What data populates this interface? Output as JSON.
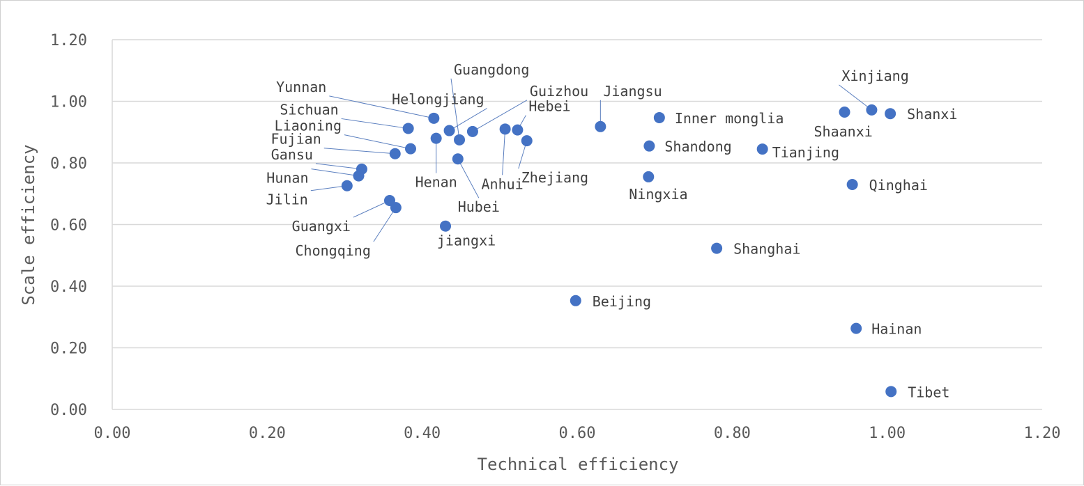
{
  "chart_data": {
    "type": "scatter",
    "title": "",
    "xlabel": "Technical efficiency",
    "ylabel": "Scale efficiency",
    "xlim": [
      0,
      1.2
    ],
    "ylim": [
      0,
      1.2
    ],
    "x_ticks": [
      "0.00",
      "0.20",
      "0.40",
      "0.60",
      "0.80",
      "1.00",
      "1.20"
    ],
    "y_ticks": [
      "0.00",
      "0.20",
      "0.40",
      "0.60",
      "0.80",
      "1.00",
      "1.20"
    ],
    "grid": true,
    "legend": "none",
    "marker_color": "#4472c4",
    "points": [
      {
        "label": "Yunnan",
        "x": 0.415,
        "y": 0.945
      },
      {
        "label": "Helongjiang",
        "x": 0.435,
        "y": 0.905
      },
      {
        "label": "Guangdong",
        "x": 0.448,
        "y": 0.875
      },
      {
        "label": "Guizhou",
        "x": 0.465,
        "y": 0.902
      },
      {
        "label": "Sichuan",
        "x": 0.382,
        "y": 0.912
      },
      {
        "label": "Liaoning",
        "x": 0.385,
        "y": 0.846
      },
      {
        "label": "Fujian",
        "x": 0.365,
        "y": 0.83
      },
      {
        "label": "Gansu",
        "x": 0.322,
        "y": 0.78
      },
      {
        "label": "Hunan",
        "x": 0.318,
        "y": 0.758
      },
      {
        "label": "Jilin",
        "x": 0.303,
        "y": 0.726
      },
      {
        "label": "Guangxi",
        "x": 0.358,
        "y": 0.678
      },
      {
        "label": "Chongqing",
        "x": 0.366,
        "y": 0.655
      },
      {
        "label": "Henan",
        "x": 0.418,
        "y": 0.88
      },
      {
        "label": "Hubei",
        "x": 0.446,
        "y": 0.813
      },
      {
        "label": "jiangxi",
        "x": 0.43,
        "y": 0.595
      },
      {
        "label": "Anhui",
        "x": 0.507,
        "y": 0.91
      },
      {
        "label": "Hebei",
        "x": 0.523,
        "y": 0.907
      },
      {
        "label": "Zhejiang",
        "x": 0.535,
        "y": 0.872
      },
      {
        "label": "Jiangsu",
        "x": 0.63,
        "y": 0.918
      },
      {
        "label": "Inner monglia",
        "x": 0.706,
        "y": 0.947
      },
      {
        "label": "Shandong",
        "x": 0.693,
        "y": 0.855
      },
      {
        "label": "Ningxia",
        "x": 0.692,
        "y": 0.755
      },
      {
        "label": "Tianjing",
        "x": 0.839,
        "y": 0.845
      },
      {
        "label": "Shaanxi",
        "x": 0.945,
        "y": 0.965
      },
      {
        "label": "Xinjiang",
        "x": 0.98,
        "y": 0.972
      },
      {
        "label": "Shanxi",
        "x": 1.004,
        "y": 0.96
      },
      {
        "label": "Qinghai",
        "x": 0.955,
        "y": 0.73
      },
      {
        "label": "Shanghai",
        "x": 0.78,
        "y": 0.523
      },
      {
        "label": "Beijing",
        "x": 0.598,
        "y": 0.353
      },
      {
        "label": "Hainan",
        "x": 0.96,
        "y": 0.263
      },
      {
        "label": "Tibet",
        "x": 1.005,
        "y": 0.058
      }
    ]
  }
}
